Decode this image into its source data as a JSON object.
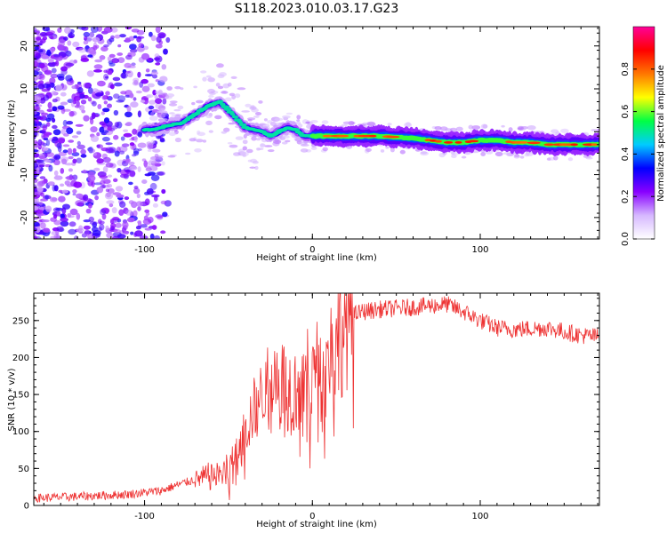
{
  "title": "S118.2023.010.03.17.G23",
  "chart_data": [
    {
      "type": "heatmap",
      "xlabel": "Height of straight line (km)",
      "ylabel": "Frequency (Hz)",
      "xlim": [
        -166,
        171
      ],
      "ylim": [
        -25,
        24.5
      ],
      "x_ticks": [
        -100,
        0,
        100
      ],
      "y_ticks": [
        -20,
        -10,
        0,
        10,
        20
      ],
      "ridge": {
        "x": [
          -95,
          -85,
          -78,
          -70,
          -62,
          -55,
          -50,
          -45,
          -40,
          -35,
          -30,
          -25,
          -20,
          -15,
          -10,
          -5,
          0,
          20,
          40,
          60,
          70,
          80,
          90,
          100,
          110,
          120,
          130,
          140,
          150,
          160,
          168
        ],
        "y": [
          0.5,
          1.5,
          2,
          4,
          6,
          7,
          5,
          3,
          1,
          0.5,
          0,
          -1,
          0,
          1,
          0.5,
          -1,
          -1,
          -1,
          -1,
          -1.5,
          -2,
          -2.5,
          -2.5,
          -2,
          -2,
          -2.5,
          -2.5,
          -3,
          -3,
          -3,
          -3
        ]
      },
      "colorbar": {
        "label": "Normalized spectral amplitude",
        "range": [
          0,
          1
        ],
        "ticks": [
          0.0,
          0.2,
          0.4,
          0.6,
          0.8
        ],
        "tick_labels": [
          "0.0",
          "0.2",
          "0.4",
          "0.6",
          "0.8"
        ],
        "colors": [
          "#ffffff",
          "#d6b8ff",
          "#8800ff",
          "#0000ff",
          "#00ccff",
          "#00ff44",
          "#ffff00",
          "#ff7700",
          "#ff0000",
          "#ff0099"
        ]
      }
    },
    {
      "type": "line",
      "xlabel": "Height of straight line (km)",
      "ylabel": "SNR (10 * v/v)",
      "xlim": [
        -166,
        171
      ],
      "ylim": [
        0,
        287
      ],
      "x_ticks": [
        -100,
        0,
        100
      ],
      "y_ticks": [
        0,
        50,
        100,
        150,
        200,
        250
      ],
      "color": "#ee3333",
      "series": [
        {
          "name": "SNR",
          "x": [
            -166,
            -140,
            -110,
            -90,
            -80,
            -70,
            -60,
            -50,
            -45,
            -40,
            -35,
            -30,
            -25,
            -20,
            -15,
            -10,
            -5,
            0,
            5,
            10,
            15,
            20,
            25,
            30,
            40,
            60,
            80,
            90,
            100,
            110,
            120,
            140,
            160,
            171
          ],
          "y": [
            10,
            12,
            15,
            20,
            28,
            35,
            40,
            45,
            60,
            100,
            130,
            150,
            170,
            180,
            160,
            155,
            165,
            170,
            185,
            200,
            225,
            248,
            258,
            262,
            265,
            268,
            272,
            262,
            250,
            240,
            238,
            240,
            230,
            228
          ]
        }
      ]
    }
  ]
}
